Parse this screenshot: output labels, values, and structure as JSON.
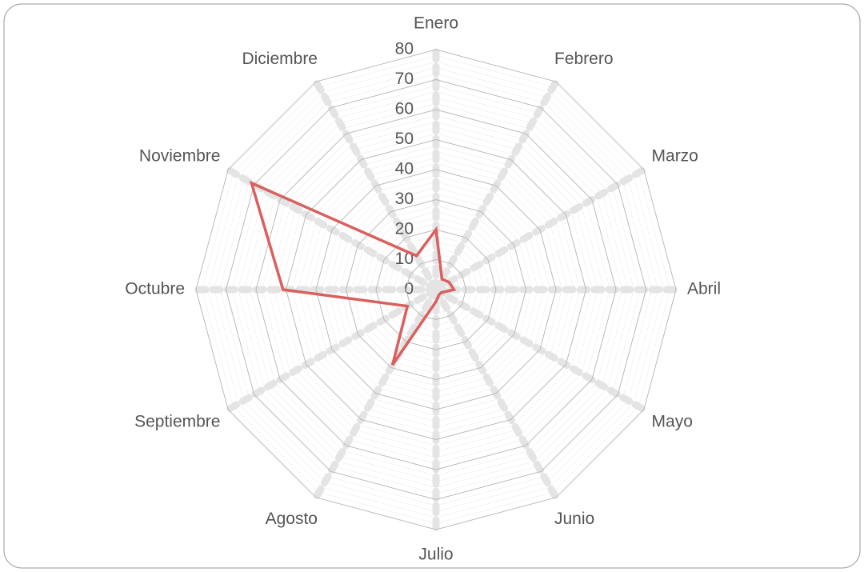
{
  "chart_data": {
    "type": "radar",
    "categories": [
      "Enero",
      "Febrero",
      "Marzo",
      "Abril",
      "Mayo",
      "Junio",
      "Julio",
      "Agosto",
      "Septiembre",
      "Octubre",
      "Noviembre",
      "Diciembre"
    ],
    "series": [
      {
        "color": "#d9605e",
        "values": [
          20,
          4,
          5,
          6,
          2,
          2,
          4,
          29,
          11,
          51,
          71,
          13
        ]
      }
    ],
    "ylim": [
      0,
      80
    ],
    "yticks": [
      0,
      10,
      20,
      30,
      40,
      50,
      60,
      70,
      80
    ],
    "grid": true
  }
}
